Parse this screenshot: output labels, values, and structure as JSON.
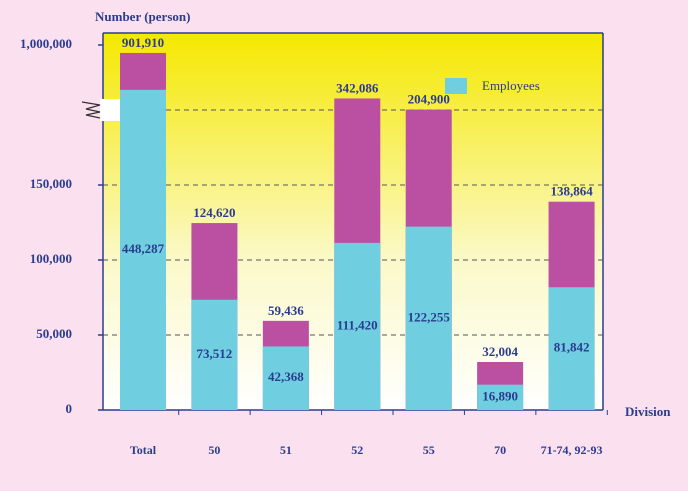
{
  "chart_data": {
    "type": "bar",
    "y_label": "Number (person)",
    "x_label": "Division",
    "categories": [
      "Total",
      "50",
      "51",
      "52",
      "55",
      "70",
      "71-74, 92-93"
    ],
    "series": [
      {
        "name": "Employees",
        "color": "#6fcfe0",
        "values": [
          448287,
          73512,
          42368,
          111420,
          122255,
          16890,
          81842
        ]
      }
    ],
    "totals": {
      "color": "#bb4fa1",
      "values": [
        901910,
        124620,
        59436,
        342086,
        204900,
        32004,
        138864
      ]
    },
    "ylim": [
      0,
      1000000
    ],
    "yticks": [
      0,
      {
        "value": 50000,
        "label": "50,000"
      },
      {
        "value": 100000,
        "label": "100,000"
      },
      {
        "value": 150000,
        "label": "150,000"
      },
      {
        "value": 1000000,
        "label": "1,000,000"
      }
    ],
    "y_break": true,
    "grid": true,
    "legend": "top-right"
  }
}
